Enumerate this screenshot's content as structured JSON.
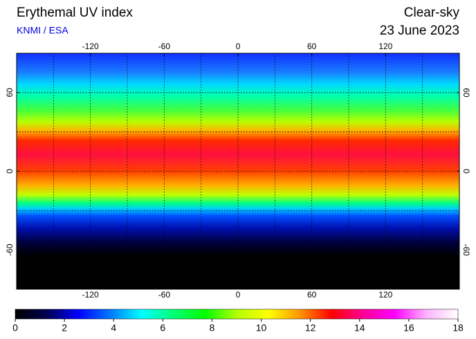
{
  "header": {
    "title": "Erythemal UV index",
    "source": "KNMI / ESA",
    "condition": "Clear-sky",
    "date": "23 June 2023"
  },
  "map": {
    "lonlim": [
      -180,
      180
    ],
    "latlim": [
      -90,
      90
    ],
    "lon_ticks": [
      -120,
      -60,
      0,
      60,
      120
    ],
    "lat_ticks": [
      60,
      0,
      -60
    ],
    "grid_step": 30
  },
  "colorbar": {
    "range": [
      0,
      18
    ],
    "ticks": [
      0,
      2,
      4,
      6,
      8,
      10,
      12,
      14,
      16,
      18
    ],
    "colors": [
      "#000000",
      "#000050",
      "#0000ff",
      "#0078ff",
      "#00ffff",
      "#00ff78",
      "#00ff00",
      "#b4ff00",
      "#ffff00",
      "#ff9600",
      "#ff0000",
      "#ff0096",
      "#ff00ff",
      "#ffb4ff",
      "#ffffff"
    ]
  }
}
